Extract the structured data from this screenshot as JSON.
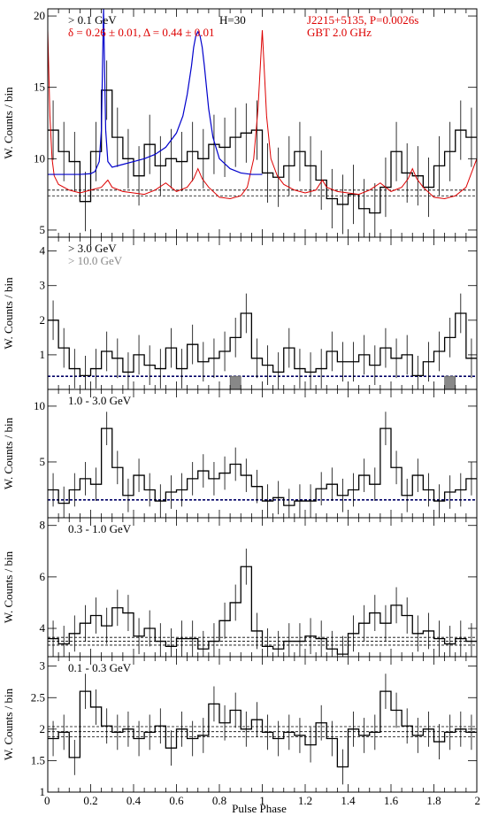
{
  "figure": {
    "xlabel": "Pulse Phase",
    "x_tick_labels": [
      "0",
      "0.2",
      "0.4",
      "0.6",
      "0.8",
      "1",
      "1.2",
      "1.4",
      "1.6",
      "1.8",
      "2"
    ],
    "colors": {
      "histogram": "#000000",
      "radio": "#dd0000",
      "fit": "#0000cc",
      "hist_10gev": "#888888",
      "background_line": "#000000"
    }
  },
  "chart_data": [
    {
      "type": "line",
      "panel": "top",
      "title": "",
      "ylabel": "W. Counts / bin",
      "xlim": [
        0,
        2
      ],
      "ylim": [
        4.5,
        20.5
      ],
      "y_ticks": [
        5,
        10,
        15,
        20
      ],
      "annotations": {
        "energy": "> 0.1 GeV",
        "htest": "H=30",
        "pulsar": "J2215+5135, P=0.0026s",
        "radio": "GBT 2.0 GHz",
        "fit_params": "δ = 0.26 ± 0.01, Δ = 0.44 ± 0.01"
      },
      "background_levels": [
        7.4,
        7.8
      ],
      "series": [
        {
          "name": "",
          "style": "histogram",
          "values": [
            12.0,
            10.5,
            9.8,
            7.0,
            10.5,
            14.8,
            11.5,
            10.0,
            8.8,
            11.0,
            9.5,
            10.0,
            9.8,
            10.5,
            10.0,
            11.0,
            10.8,
            11.5,
            11.8,
            12.0,
            9.0,
            8.7,
            9.5,
            10.5,
            9.5,
            8.5,
            7.2,
            6.8,
            7.5,
            6.5,
            6.2,
            8.0,
            10.5,
            9.0,
            8.8,
            8.0,
            9.5,
            10.5,
            12.0,
            11.5
          ]
        },
        {
          "name": "",
          "style": "radio",
          "x": [
            0.0,
            0.01,
            0.02,
            0.03,
            0.05,
            0.1,
            0.15,
            0.2,
            0.25,
            0.28,
            0.3,
            0.35,
            0.4,
            0.45,
            0.5,
            0.55,
            0.6,
            0.65,
            0.68,
            0.7,
            0.72,
            0.75,
            0.8,
            0.85,
            0.9,
            0.93,
            0.96,
            0.98,
            1.0,
            1.02,
            1.04,
            1.07,
            1.1,
            1.15,
            1.2,
            1.25,
            1.28,
            1.3,
            1.35,
            1.4,
            1.45,
            1.5,
            1.55,
            1.6,
            1.65,
            1.68,
            1.7,
            1.72,
            1.75,
            1.8,
            1.85,
            1.9,
            1.95,
            2.0
          ],
          "y": [
            19.0,
            13.0,
            10.0,
            8.8,
            8.2,
            7.8,
            7.6,
            7.8,
            8.0,
            8.5,
            8.0,
            7.7,
            7.6,
            7.5,
            7.8,
            8.3,
            7.7,
            8.0,
            8.6,
            9.3,
            8.6,
            8.0,
            7.3,
            7.2,
            7.4,
            8.0,
            10.0,
            13.5,
            19.0,
            13.0,
            10.0,
            8.8,
            8.2,
            7.8,
            7.6,
            7.8,
            8.5,
            8.0,
            7.7,
            7.6,
            7.5,
            7.8,
            8.3,
            7.7,
            8.0,
            8.6,
            9.3,
            8.6,
            8.0,
            7.3,
            7.2,
            7.4,
            8.0,
            10.0
          ]
        },
        {
          "name": "",
          "style": "fit",
          "x": [
            0.0,
            0.05,
            0.1,
            0.15,
            0.2,
            0.22,
            0.24,
            0.25,
            0.26,
            0.27,
            0.28,
            0.3,
            0.35,
            0.4,
            0.45,
            0.5,
            0.55,
            0.6,
            0.63,
            0.65,
            0.67,
            0.68,
            0.69,
            0.7,
            0.71,
            0.72,
            0.73,
            0.75,
            0.77,
            0.8,
            0.85,
            0.9,
            0.95,
            1.0
          ],
          "y": [
            8.9,
            8.9,
            8.9,
            8.9,
            8.95,
            9.1,
            9.8,
            12.0,
            20.5,
            12.0,
            9.8,
            9.4,
            9.6,
            9.8,
            10.0,
            10.3,
            10.8,
            11.8,
            13.0,
            14.5,
            16.5,
            17.8,
            18.6,
            18.9,
            18.6,
            17.8,
            16.5,
            13.5,
            11.5,
            10.0,
            9.3,
            9.0,
            8.9,
            8.9
          ]
        }
      ]
    },
    {
      "type": "bar",
      "panel": "above-3-gev",
      "title": "",
      "ylabel": "W. Counts / bin",
      "xlim": [
        0,
        2
      ],
      "ylim": [
        0,
        4.4
      ],
      "y_ticks": [
        1,
        2,
        3,
        4
      ],
      "annotations": {
        "energy": "> 3.0 GeV",
        "energy_hi": "> 10.0 GeV"
      },
      "background_levels": [
        0.38
      ],
      "series": [
        {
          "name": "",
          "style": "histogram",
          "values": [
            2.0,
            1.2,
            0.6,
            0.4,
            0.6,
            1.1,
            0.9,
            0.5,
            1.0,
            0.7,
            0.6,
            1.2,
            0.6,
            1.3,
            0.8,
            0.9,
            1.1,
            1.5,
            2.2,
            0.9,
            0.7,
            0.5,
            1.2,
            0.6,
            0.5,
            0.6,
            1.1,
            0.8,
            0.8,
            1.0,
            0.7,
            1.2,
            0.9,
            1.0,
            0.4,
            0.8,
            1.1,
            1.5,
            2.2,
            0.9
          ]
        },
        {
          "name": "",
          "style": "hist_10gev",
          "values": [
            0,
            0,
            0,
            0,
            0,
            0,
            0,
            0,
            0,
            0,
            0,
            0,
            0,
            0,
            0,
            0,
            0,
            0.38,
            0,
            0,
            0,
            0,
            0,
            0,
            0,
            0,
            0,
            0,
            0,
            0,
            0,
            0,
            0,
            0,
            0,
            0,
            0,
            0.38,
            0,
            0
          ]
        }
      ]
    },
    {
      "type": "bar",
      "panel": "1-3-gev",
      "title": "",
      "ylabel": "W. Counts / bin",
      "xlim": [
        0,
        2
      ],
      "ylim": [
        0,
        11.5
      ],
      "y_ticks": [
        5,
        10
      ],
      "annotations": {
        "energy": "1.0 - 3.0 GeV"
      },
      "background_levels": [
        1.6
      ],
      "series": [
        {
          "name": "",
          "style": "histogram",
          "values": [
            2.5,
            1.3,
            2.5,
            3.5,
            3.0,
            8.0,
            4.5,
            2.0,
            3.8,
            2.5,
            1.5,
            2.3,
            2.5,
            3.5,
            4.2,
            3.5,
            4.0,
            4.8,
            3.8,
            2.8,
            1.5,
            1.8,
            1.1,
            1.5,
            1.5,
            2.6,
            3.0,
            2.0,
            2.5,
            3.8,
            3.0,
            8.0,
            4.5,
            2.0,
            3.8,
            2.5,
            1.5,
            2.3,
            2.5,
            3.5
          ]
        }
      ]
    },
    {
      "type": "bar",
      "panel": "0.3-1-gev",
      "title": "",
      "ylabel": "W. Counts / bin",
      "xlim": [
        0,
        2
      ],
      "ylim": [
        2.9,
        8.3
      ],
      "y_ticks": [
        4,
        6,
        8
      ],
      "annotations": {
        "energy": "0.3 - 1.0 GeV"
      },
      "background_levels": [
        3.35,
        3.5,
        3.65
      ],
      "series": [
        {
          "name": "",
          "style": "histogram",
          "values": [
            3.6,
            3.4,
            3.8,
            4.2,
            4.5,
            4.1,
            4.8,
            4.6,
            3.7,
            4.0,
            3.5,
            3.3,
            3.6,
            3.6,
            3.2,
            3.5,
            4.3,
            5.0,
            6.4,
            3.9,
            3.3,
            3.2,
            3.5,
            3.5,
            3.7,
            3.6,
            3.2,
            3.0,
            3.8,
            4.2,
            4.6,
            4.2,
            4.9,
            4.5,
            3.8,
            3.9,
            3.6,
            3.4,
            3.6,
            3.5
          ]
        }
      ]
    },
    {
      "type": "bar",
      "panel": "0.1-0.3-gev",
      "title": "",
      "ylabel": "W. Counts / bin",
      "xlim": [
        0,
        2
      ],
      "ylim": [
        1.0,
        3.15
      ],
      "y_ticks": [
        1,
        1.5,
        2,
        2.5,
        3
      ],
      "annotations": {
        "energy": "0.1 - 0.3 GeV"
      },
      "background_levels": [
        1.88,
        1.96,
        2.04
      ],
      "series": [
        {
          "name": "",
          "style": "histogram",
          "values": [
            1.85,
            1.95,
            1.55,
            2.6,
            2.35,
            2.05,
            1.95,
            2.0,
            1.85,
            1.95,
            2.05,
            1.7,
            2.0,
            1.85,
            1.9,
            2.4,
            2.1,
            2.3,
            2.0,
            2.15,
            1.95,
            1.85,
            1.95,
            1.9,
            1.75,
            2.1,
            1.85,
            1.4,
            2.0,
            1.9,
            1.95,
            2.6,
            2.3,
            2.05,
            1.9,
            2.0,
            1.8,
            1.95,
            2.0,
            1.95
          ]
        }
      ]
    }
  ]
}
